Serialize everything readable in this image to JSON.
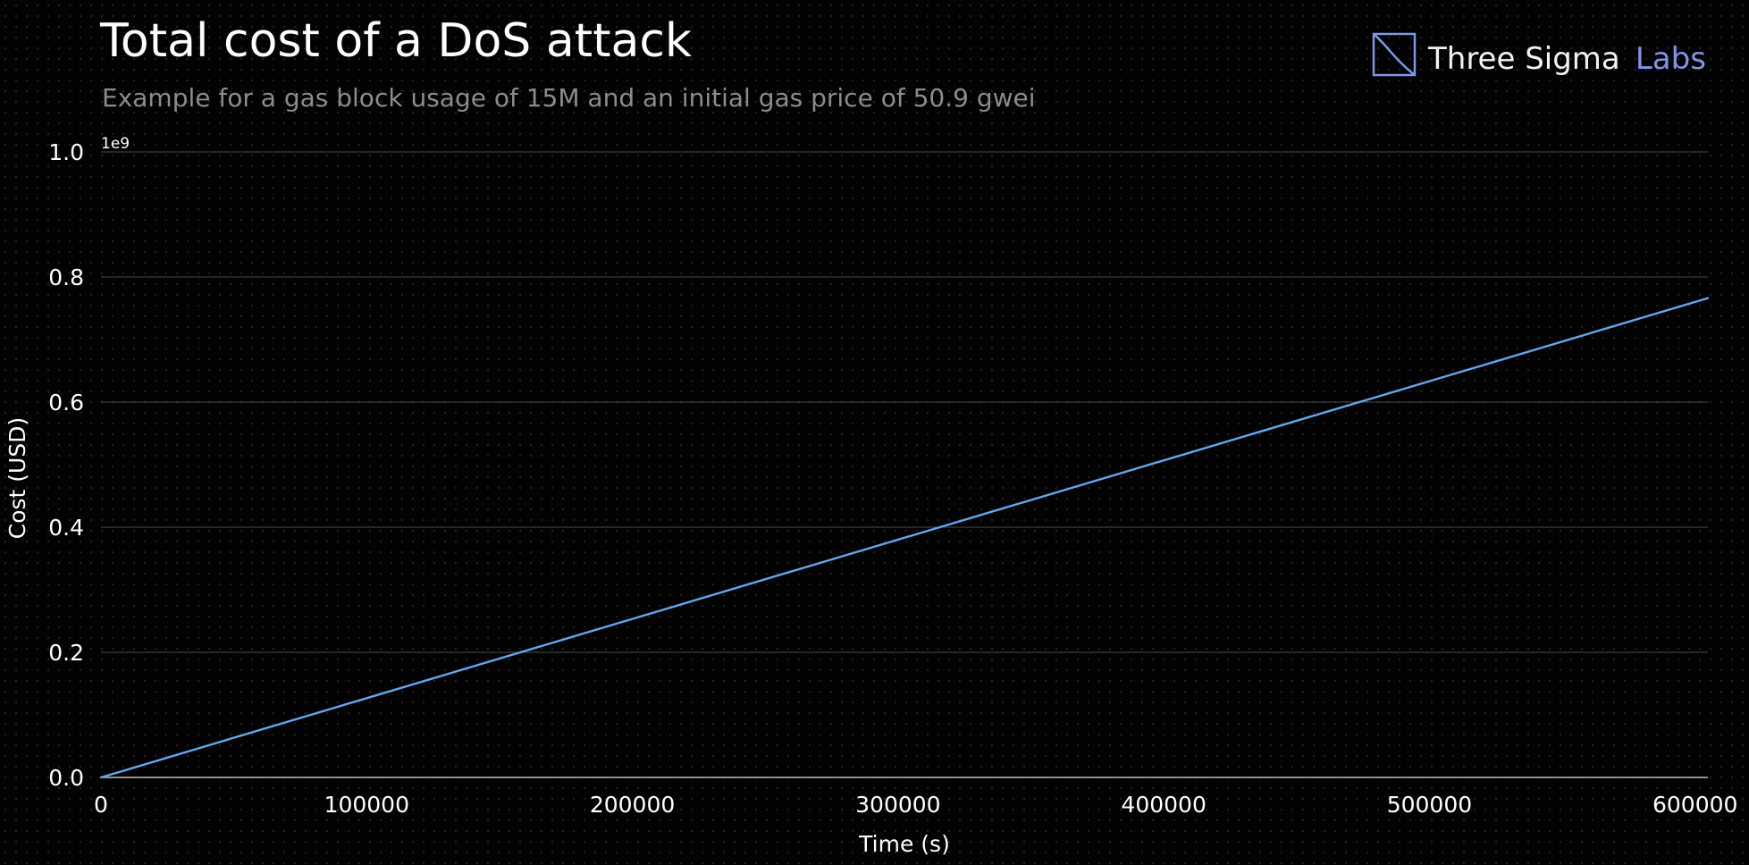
{
  "branding": {
    "logo_name": "Three Sigma",
    "logo_accent": "Labs",
    "accent_color": "#7f95ea",
    "icon": "three-sigma-logo-icon"
  },
  "chart_data": {
    "type": "line",
    "title": "Total cost of a DoS attack",
    "subtitle": "Example for a gas block usage of 15M and an initial gas price of 50.9 gwei",
    "xlabel": "Time (s)",
    "ylabel": "Cost (USD)",
    "y_offset_label": "1e9",
    "xlim": [
      0,
      604800
    ],
    "ylim": [
      0,
      1.0
    ],
    "x_ticks": [
      0,
      100000,
      200000,
      300000,
      400000,
      500000,
      600000
    ],
    "x_tick_labels": [
      "0",
      "100000",
      "200000",
      "300000",
      "400000",
      "500000",
      "600000"
    ],
    "y_ticks": [
      0.0,
      0.2,
      0.4,
      0.6,
      0.8,
      1.0
    ],
    "y_tick_labels": [
      "0.0",
      "0.2",
      "0.4",
      "0.6",
      "0.8",
      "1.0"
    ],
    "grid": "horizontal",
    "background": "#000000",
    "gridline_color": "#4a4a4a",
    "series": [
      {
        "color": "#63a6f0",
        "x": [
          0,
          100000,
          200000,
          300000,
          400000,
          500000,
          604800
        ],
        "y": [
          0,
          0.1267,
          0.2534,
          0.3801,
          0.5068,
          0.6335,
          0.7663
        ]
      }
    ]
  }
}
